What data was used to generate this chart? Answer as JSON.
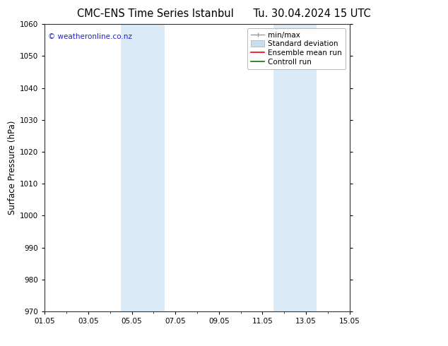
{
  "title_left": "CMC-ENS Time Series Istanbul",
  "title_right": "Tu. 30.04.2024 15 UTC",
  "ylabel": "Surface Pressure (hPa)",
  "ylim": [
    970,
    1060
  ],
  "yticks": [
    970,
    980,
    990,
    1000,
    1010,
    1020,
    1030,
    1040,
    1050,
    1060
  ],
  "xtick_labels": [
    "01.05",
    "03.05",
    "05.05",
    "07.05",
    "09.05",
    "11.05",
    "13.05",
    "15.05"
  ],
  "xtick_positions": [
    0,
    2,
    4,
    6,
    8,
    10,
    12,
    14
  ],
  "xlim": [
    0,
    14
  ],
  "shaded_bands": [
    {
      "x_start": 3.5,
      "x_end": 5.5
    },
    {
      "x_start": 10.5,
      "x_end": 12.5
    }
  ],
  "shaded_color": "#daeaf7",
  "background_color": "#ffffff",
  "watermark_text": "© weatheronline.co.nz",
  "watermark_color": "#2222cc",
  "legend_entries": [
    {
      "label": "min/max",
      "type": "minmax",
      "color": "#999999"
    },
    {
      "label": "Standard deviation",
      "type": "stddev",
      "color": "#c8ddf0"
    },
    {
      "label": "Ensemble mean run",
      "type": "line",
      "color": "#ff0000",
      "lw": 1.2
    },
    {
      "label": "Controll run",
      "type": "line",
      "color": "#007700",
      "lw": 1.2
    }
  ],
  "title_fontsize": 10.5,
  "ylabel_fontsize": 8.5,
  "tick_fontsize": 7.5,
  "legend_fontsize": 7.5
}
